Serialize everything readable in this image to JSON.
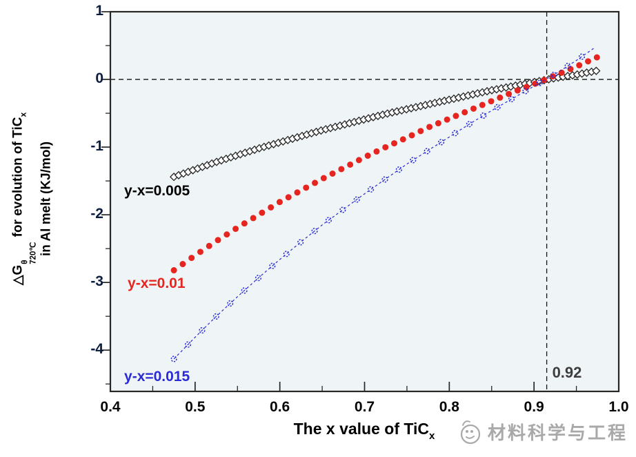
{
  "figure": {
    "watermark_text": "材料科学与工程"
  },
  "chart_data": {
    "type": "scatter",
    "title": "",
    "xlabel": {
      "text": "The x value of TiC",
      "sub": "x"
    },
    "ylabel": {
      "delta": "△G",
      "sup": "θ",
      "sub": "720℃",
      "rest": " for evolution of TiC",
      "rest_sub": "x",
      "line2": "in Al melt (KJ/mol)"
    },
    "xlim": [
      0.4,
      1.0
    ],
    "ylim": [
      -4.61,
      1.0
    ],
    "x_major_ticks": [
      0.4,
      0.5,
      0.6,
      0.7,
      0.8,
      0.9,
      1.0
    ],
    "x_tick_labels": [
      "0.4",
      "0.5",
      "0.6",
      "0.7",
      "0.8",
      "0.9",
      "1.0"
    ],
    "x_minor_ticks": [
      0.45,
      0.55,
      0.65,
      0.75,
      0.85,
      0.95
    ],
    "y_major_ticks": [
      1,
      0,
      -1,
      -2,
      -3,
      -4
    ],
    "y_tick_labels": [
      "1",
      "0",
      "-1",
      "-2",
      "-3",
      "-4"
    ],
    "y_minor_ticks": [
      0.5,
      -0.5,
      -1.5,
      -2.5,
      -3.5,
      -4.5
    ],
    "grid": false,
    "legend_position": "inline-labels",
    "colors": {
      "plot_bg": "#eff5f6",
      "axis": "#262626",
      "ref_line": "#111111",
      "annotation": "#3d3d3d",
      "watermark": "#a9a9a9"
    },
    "ref_lines": {
      "horizontal_y": 0,
      "vertical_x": 0.915,
      "vertical_label": "0.92",
      "vertical_label_pos": [
        0.9215,
        -4.33
      ]
    },
    "series": [
      {
        "name": "y-x=0.005",
        "marker": "open-diamond",
        "color": "#2a2a2a",
        "connect": "none",
        "marker_step": 0.0056,
        "marker_range": [
          0.475,
          0.975
        ],
        "label": {
          "text": "y-x=0.005",
          "pos": [
            0.4163,
            -1.65
          ],
          "color": "#000000"
        },
        "points": [
          [
            0.475,
            -1.44
          ],
          [
            0.5,
            -1.33
          ],
          [
            0.525,
            -1.22
          ],
          [
            0.55,
            -1.12
          ],
          [
            0.575,
            -1.02
          ],
          [
            0.6,
            -0.93
          ],
          [
            0.625,
            -0.84
          ],
          [
            0.65,
            -0.75
          ],
          [
            0.675,
            -0.67
          ],
          [
            0.7,
            -0.59
          ],
          [
            0.725,
            -0.51
          ],
          [
            0.75,
            -0.44
          ],
          [
            0.775,
            -0.37
          ],
          [
            0.8,
            -0.3
          ],
          [
            0.825,
            -0.23
          ],
          [
            0.85,
            -0.16
          ],
          [
            0.875,
            -0.1
          ],
          [
            0.9,
            -0.04
          ],
          [
            0.925,
            0.02
          ],
          [
            0.95,
            0.07
          ],
          [
            0.975,
            0.13
          ]
        ]
      },
      {
        "name": "y-x=0.01",
        "marker": "filled-circle",
        "color": "#e62520",
        "connect": "none",
        "marker_step": 0.0104,
        "marker_range": [
          0.475,
          0.975
        ],
        "label": {
          "text": "y-x=0.01",
          "pos": [
            0.4204,
            -3.02
          ],
          "color": "#e62520"
        },
        "points": [
          [
            0.475,
            -2.82
          ],
          [
            0.5,
            -2.6
          ],
          [
            0.525,
            -2.39
          ],
          [
            0.55,
            -2.19
          ],
          [
            0.575,
            -2.0
          ],
          [
            0.6,
            -1.81
          ],
          [
            0.625,
            -1.64
          ],
          [
            0.65,
            -1.47
          ],
          [
            0.675,
            -1.31
          ],
          [
            0.7,
            -1.15
          ],
          [
            0.725,
            -1.0
          ],
          [
            0.75,
            -0.86
          ],
          [
            0.775,
            -0.71
          ],
          [
            0.8,
            -0.58
          ],
          [
            0.825,
            -0.45
          ],
          [
            0.85,
            -0.32
          ],
          [
            0.875,
            -0.19
          ],
          [
            0.9,
            -0.07
          ],
          [
            0.925,
            0.06
          ],
          [
            0.95,
            0.19
          ],
          [
            0.975,
            0.33
          ]
        ]
      },
      {
        "name": "y-x=0.015",
        "marker": "open-circle",
        "color": "#2b2bd5",
        "connect": "dashed",
        "marker_step": 0.0166,
        "marker_range": [
          0.475,
          0.972
        ],
        "label": {
          "text": "y-x=0.015",
          "pos": [
            0.4163,
            -4.4
          ],
          "color": "#2b2bd5"
        },
        "points": [
          [
            0.475,
            -4.13
          ],
          [
            0.5,
            -3.81
          ],
          [
            0.525,
            -3.5
          ],
          [
            0.55,
            -3.21
          ],
          [
            0.575,
            -2.93
          ],
          [
            0.6,
            -2.66
          ],
          [
            0.625,
            -2.4
          ],
          [
            0.65,
            -2.15
          ],
          [
            0.675,
            -1.92
          ],
          [
            0.7,
            -1.69
          ],
          [
            0.725,
            -1.47
          ],
          [
            0.75,
            -1.25
          ],
          [
            0.775,
            -1.05
          ],
          [
            0.8,
            -0.85
          ],
          [
            0.825,
            -0.65
          ],
          [
            0.85,
            -0.46
          ],
          [
            0.875,
            -0.28
          ],
          [
            0.9,
            -0.1
          ],
          [
            0.925,
            0.08
          ],
          [
            0.95,
            0.28
          ],
          [
            0.975,
            0.5
          ]
        ]
      }
    ]
  }
}
